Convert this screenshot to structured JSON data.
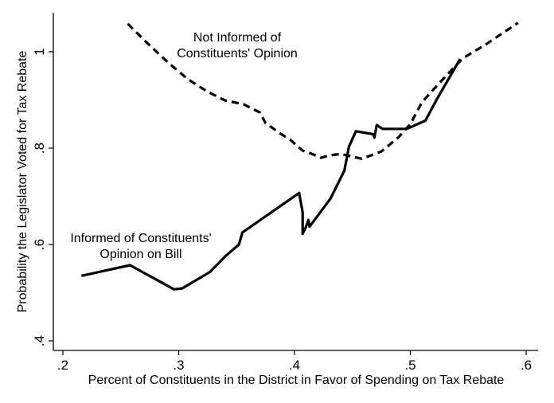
{
  "chart_data": {
    "type": "line",
    "xlabel": "Percent of Constituents in the District in Favor of Spending on Tax Rebate",
    "ylabel": "Probability the Legislator Voted for Tax Rebate",
    "xlim": [
      0.2,
      0.6
    ],
    "ylim": [
      0.4,
      1.0
    ],
    "xticks": [
      {
        "value": 0.2,
        "label": ".2"
      },
      {
        "value": 0.3,
        "label": ".3"
      },
      {
        "value": 0.4,
        "label": ".4"
      },
      {
        "value": 0.5,
        "label": ".5"
      },
      {
        "value": 0.6,
        "label": ".6"
      }
    ],
    "yticks": [
      {
        "value": 0.4,
        "label": ".4"
      },
      {
        "value": 0.6,
        "label": ".6"
      },
      {
        "value": 0.8,
        "label": ".8"
      },
      {
        "value": 1.0,
        "label": "1"
      }
    ],
    "grid": false,
    "legend": "none",
    "series": [
      {
        "style": "solid",
        "x": [
          0.216,
          0.258,
          0.296,
          0.303,
          0.327,
          0.34,
          0.352,
          0.355,
          0.404,
          0.407,
          0.407,
          0.41,
          0.412,
          0.413,
          0.431,
          0.443,
          0.447,
          0.453,
          0.468,
          0.469,
          0.471,
          0.476,
          0.497,
          0.513,
          0.523,
          0.543
        ],
        "y": [
          0.535,
          0.557,
          0.507,
          0.509,
          0.543,
          0.575,
          0.6,
          0.625,
          0.707,
          0.667,
          0.622,
          0.637,
          0.651,
          0.637,
          0.695,
          0.753,
          0.803,
          0.835,
          0.829,
          0.822,
          0.848,
          0.84,
          0.84,
          0.857,
          0.902,
          0.985
        ]
      },
      {
        "style": "dashed",
        "x": [
          0.256,
          0.272,
          0.292,
          0.308,
          0.325,
          0.34,
          0.356,
          0.37,
          0.375,
          0.388,
          0.396,
          0.407,
          0.413,
          0.423,
          0.43,
          0.44,
          0.458,
          0.475,
          0.49,
          0.5,
          0.51,
          0.525,
          0.545,
          0.565,
          0.593
        ],
        "y": [
          1.058,
          1.02,
          0.975,
          0.943,
          0.917,
          0.899,
          0.891,
          0.874,
          0.852,
          0.83,
          0.818,
          0.795,
          0.79,
          0.78,
          0.785,
          0.788,
          0.778,
          0.793,
          0.823,
          0.85,
          0.895,
          0.935,
          0.986,
          1.015,
          1.06
        ]
      }
    ],
    "annotations": [
      {
        "lines": [
          "Not Informed of",
          "Constituents' Opinion"
        ]
      },
      {
        "lines": [
          "Informed of Constituents'",
          "Opinion on Bill"
        ]
      }
    ]
  }
}
